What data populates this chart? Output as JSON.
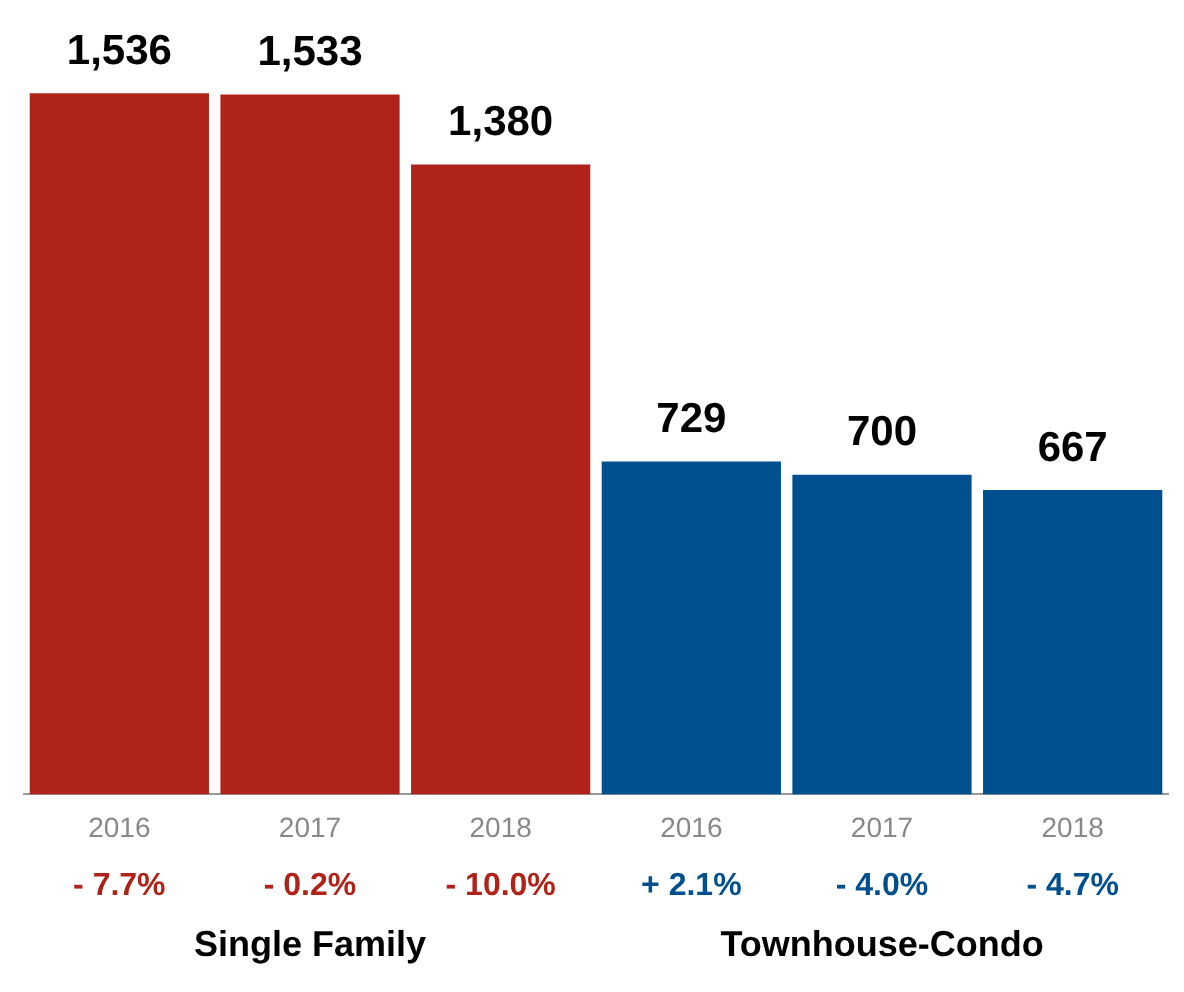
{
  "chart_data": {
    "type": "bar",
    "categories": [
      "2016",
      "2017",
      "2018",
      "2016",
      "2017",
      "2018"
    ],
    "values": [
      1536,
      1533,
      1380,
      729,
      700,
      667
    ],
    "colors": [
      "#b0231a",
      "#b0231a",
      "#b0231a",
      "#00508f",
      "#00508f",
      "#00508f"
    ],
    "value_labels": [
      "1,536",
      "1,533",
      "1,380",
      "729",
      "700",
      "667"
    ],
    "legend": false,
    "grid": false,
    "tick_labels": "x",
    "annotations": [
      "- 7.7%",
      "- 0.2%",
      "- 10.0%",
      "+ 2.1%",
      "- 4.0%",
      "- 4.7%",
      "Single Family",
      "Townhouse-Condo"
    ]
  }
}
